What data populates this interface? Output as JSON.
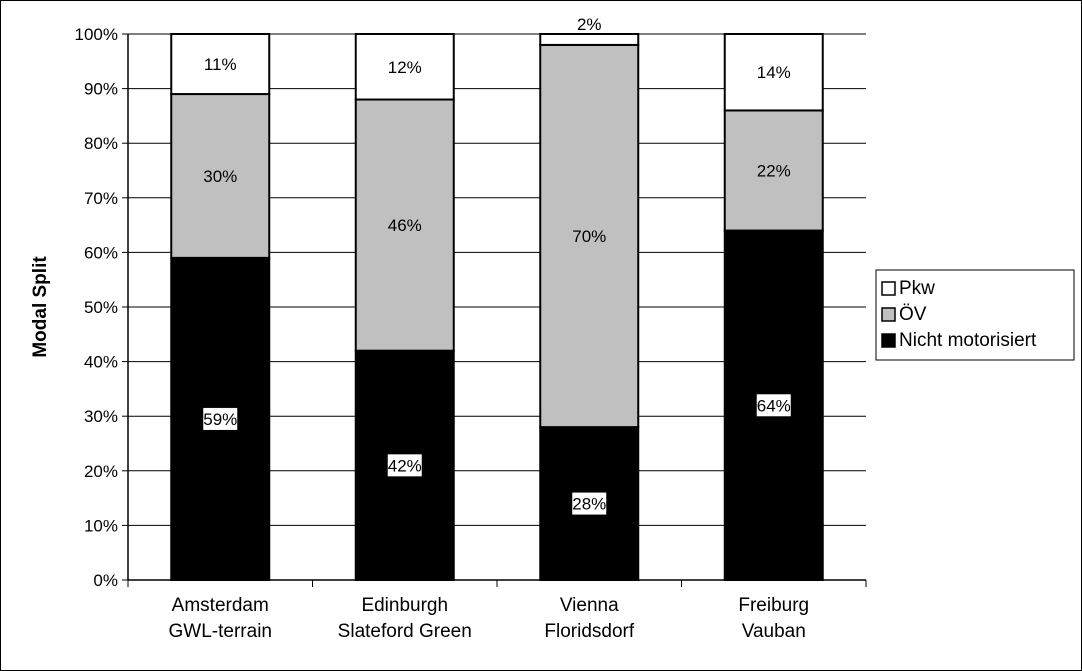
{
  "chart_data": {
    "type": "bar",
    "stacked": true,
    "title": "",
    "xlabel": "",
    "ylabel": "Modal Split",
    "ylim": [
      0,
      100
    ],
    "ytick_step": 10,
    "grid": true,
    "legend_placement": "right",
    "categories": [
      [
        "Amsterdam",
        "GWL-terrain"
      ],
      [
        "Edinburgh",
        "Slateford Green"
      ],
      [
        "Vienna",
        "Floridsdorf"
      ],
      [
        "Freiburg",
        "Vauban"
      ]
    ],
    "series": [
      {
        "name": "Nicht motorisiert",
        "color": "#000000",
        "values": [
          59,
          42,
          28,
          64
        ],
        "labels": [
          "59%",
          "42%",
          "28%",
          "64%"
        ]
      },
      {
        "name": "ÖV",
        "color": "#c0c0c0",
        "values": [
          30,
          46,
          70,
          22
        ],
        "labels": [
          "30%",
          "46%",
          "70%",
          "22%"
        ]
      },
      {
        "name": "Pkw",
        "color": "#ffffff",
        "values": [
          11,
          12,
          2,
          14
        ],
        "labels": [
          "11%",
          "12%",
          "2%",
          "14%"
        ]
      }
    ],
    "legend_order": [
      "Pkw",
      "ÖV",
      "Nicht motorisiert"
    ]
  }
}
